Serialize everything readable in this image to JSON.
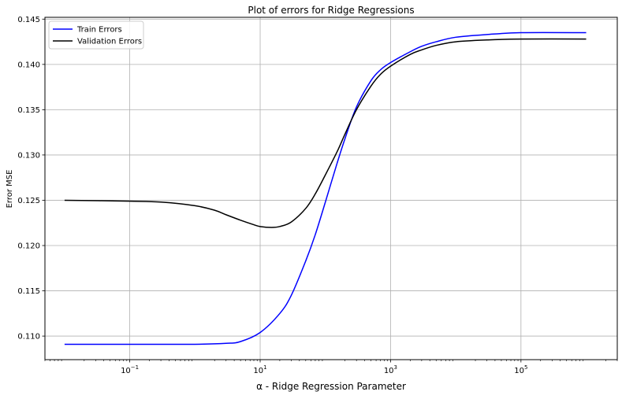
{
  "chart_data": {
    "type": "line",
    "title": "Plot of errors for Ridge Regressions",
    "xlabel": "α - Ridge Regression Parameter",
    "ylabel": "Error MSE",
    "xscale": "log",
    "xlim": [
      0.005,
      3000000
    ],
    "ylim": [
      0.1074,
      0.1452
    ],
    "grid": true,
    "legend_position": "upper left",
    "x_ticks": [
      {
        "value": 0.1,
        "base": "10",
        "exp": "−1"
      },
      {
        "value": 10,
        "base": "10",
        "exp": "1"
      },
      {
        "value": 1000,
        "base": "10",
        "exp": "3"
      },
      {
        "value": 100000,
        "base": "10",
        "exp": "5"
      }
    ],
    "y_ticks": [
      "0.110",
      "0.115",
      "0.120",
      "0.125",
      "0.130",
      "0.135",
      "0.140",
      "0.145"
    ],
    "series": [
      {
        "name": "Train Errors",
        "color": "#0000ff",
        "points": [
          [
            0.01,
            0.1091
          ],
          [
            0.1,
            0.1091
          ],
          [
            1,
            0.1091
          ],
          [
            3,
            0.1092
          ],
          [
            5,
            0.1094
          ],
          [
            10,
            0.1104
          ],
          [
            20,
            0.1125
          ],
          [
            30,
            0.1145
          ],
          [
            50,
            0.1183
          ],
          [
            70,
            0.1212
          ],
          [
            100,
            0.1248
          ],
          [
            150,
            0.129
          ],
          [
            200,
            0.1318
          ],
          [
            300,
            0.1353
          ],
          [
            500,
            0.1382
          ],
          [
            700,
            0.1394
          ],
          [
            1000,
            0.1402
          ],
          [
            2000,
            0.1414
          ],
          [
            3000,
            0.142
          ],
          [
            5000,
            0.1425
          ],
          [
            10000,
            0.143
          ],
          [
            30000,
            0.1433
          ],
          [
            100000,
            0.1435
          ],
          [
            1000000,
            0.1435
          ]
        ]
      },
      {
        "name": "Validation Errors",
        "color": "#000000",
        "points": [
          [
            0.01,
            0.125
          ],
          [
            0.1,
            0.1249
          ],
          [
            0.3,
            0.1248
          ],
          [
            1,
            0.1244
          ],
          [
            2,
            0.1239
          ],
          [
            3,
            0.1234
          ],
          [
            5,
            0.1228
          ],
          [
            8,
            0.1223
          ],
          [
            10,
            0.1221
          ],
          [
            15,
            0.122
          ],
          [
            20,
            0.1221
          ],
          [
            30,
            0.1226
          ],
          [
            50,
            0.1241
          ],
          [
            70,
            0.1257
          ],
          [
            100,
            0.1278
          ],
          [
            150,
            0.1303
          ],
          [
            200,
            0.1323
          ],
          [
            300,
            0.135
          ],
          [
            500,
            0.1376
          ],
          [
            700,
            0.1389
          ],
          [
            1000,
            0.1398
          ],
          [
            2000,
            0.1411
          ],
          [
            3000,
            0.1416
          ],
          [
            5000,
            0.1421
          ],
          [
            10000,
            0.1425
          ],
          [
            30000,
            0.1427
          ],
          [
            100000,
            0.1428
          ],
          [
            1000000,
            0.1428
          ]
        ]
      }
    ]
  }
}
